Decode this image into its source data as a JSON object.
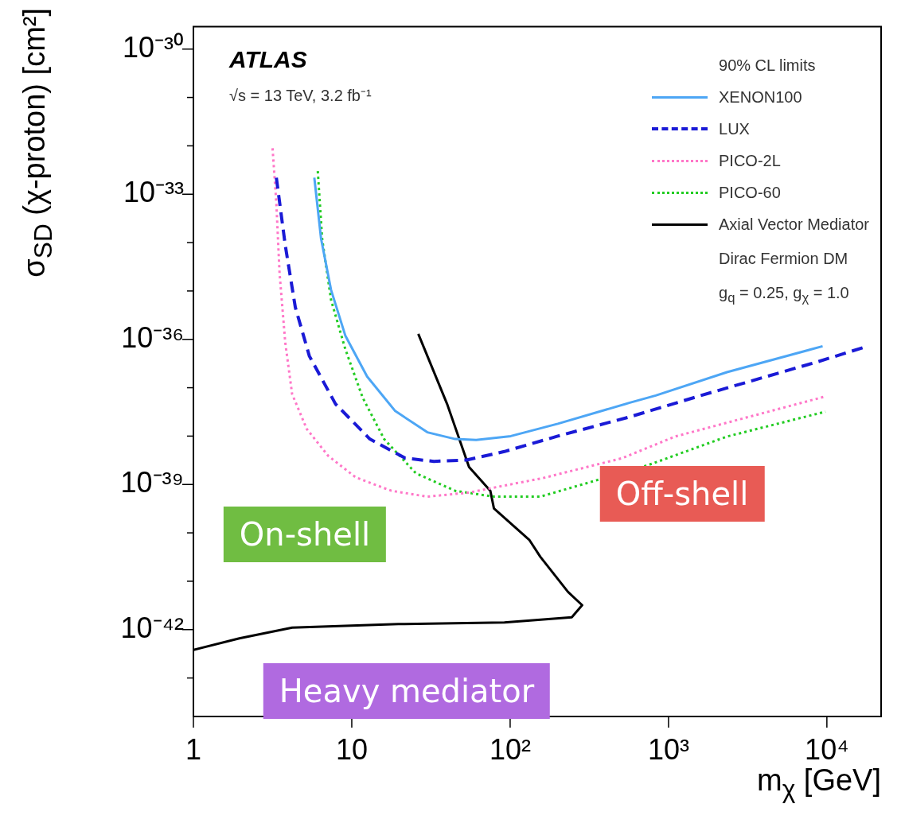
{
  "chart_data": {
    "type": "line",
    "xlabel": "m$_{χ}$ [GeV]",
    "ylabel": "σ$_{SD}$ (χ-proton) [cm²]",
    "legend_title": "90% CL limits",
    "legend": "top right",
    "log": "xy",
    "xlim": [
      1,
      22000
    ],
    "xticks": [
      {
        "value": 1,
        "label": "1"
      },
      {
        "value": 10,
        "label": "10"
      },
      {
        "value": 100,
        "label": "10²"
      },
      {
        "value": 1000,
        "label": "10³"
      },
      {
        "value": 10000,
        "label": "10⁴"
      }
    ],
    "ylim": [
      1.6e-44,
      2.9e-30
    ],
    "yticks": [
      {
        "value": 1e-43,
        "label": null
      },
      {
        "value": 1e-42,
        "label": "10⁻⁴²"
      },
      {
        "value": 1e-41,
        "label": null
      },
      {
        "value": 1e-40,
        "label": null
      },
      {
        "value": 1e-39,
        "label": "10⁻³⁹"
      },
      {
        "value": 1e-38,
        "label": null
      },
      {
        "value": 1e-37,
        "label": null
      },
      {
        "value": 1e-36,
        "label": "10⁻³⁶"
      },
      {
        "value": 1e-35,
        "label": null
      },
      {
        "value": 1e-34,
        "label": null
      },
      {
        "value": 1e-33,
        "label": "10⁻³³"
      },
      {
        "value": 1e-32,
        "label": null
      },
      {
        "value": 1e-31,
        "label": null
      },
      {
        "value": 1e-30,
        "label": "10⁻³⁰"
      }
    ],
    "series": [
      {
        "name": "XENON100",
        "color": "#4da6f5",
        "line_style": "solid",
        "x": [
          5.8,
          6.4,
          7.4,
          9.1,
          12.5,
          18.8,
          30,
          45,
          61,
          101,
          200,
          570,
          830,
          2340,
          9400
        ],
        "values": [
          2.2e-33,
          1.2e-34,
          1.05e-35,
          1.2e-36,
          1.7e-37,
          3.3e-38,
          1.2e-38,
          8.7e-39,
          8.3e-39,
          1e-38,
          1.8e-38,
          4.9e-38,
          6.9e-38,
          2.1e-37,
          7.2e-37
        ]
      },
      {
        "name": "LUX",
        "color": "#1a1ad6",
        "line_style": "dashed",
        "x": [
          3.34,
          3.8,
          4.4,
          5.4,
          7.9,
          13,
          21.8,
          33,
          53,
          92,
          200,
          570,
          1600,
          8900,
          18000
        ],
        "values": [
          2.2e-33,
          8.9e-35,
          4.6e-36,
          4.5e-37,
          4.6e-38,
          8.7e-39,
          3.5e-39,
          3e-39,
          3.2e-39,
          4.8e-39,
          1e-38,
          2.5e-38,
          6.9e-38,
          3.5e-37,
          7.2e-37
        ]
      },
      {
        "name": "PICO-2L",
        "color": "#ff77c8",
        "line_style": "dotted",
        "x": [
          3.16,
          3.34,
          3.5,
          3.8,
          4.2,
          5.2,
          7.1,
          10.6,
          17.8,
          30,
          55,
          92,
          160,
          510,
          1100,
          9800
        ],
        "values": [
          8.9e-33,
          6.5e-34,
          2.3e-35,
          8.7e-37,
          7.4e-38,
          1.4e-38,
          3.9e-39,
          1.4e-39,
          7.4e-40,
          5.6e-40,
          6.8e-40,
          9.5e-40,
          1.35e-39,
          3.5e-39,
          9.8e-39,
          6.6e-38
        ]
      },
      {
        "name": "PICO-60",
        "color": "#22cc22",
        "line_style": "dotted",
        "x": [
          6.1,
          6.5,
          7.4,
          9.1,
          11.7,
          16,
          25.4,
          45,
          79,
          155,
          285,
          740,
          2340,
          9800
        ],
        "values": [
          3e-33,
          1.2e-34,
          6.5e-36,
          6.3e-37,
          6.3e-38,
          8.7e-39,
          1.7e-39,
          7.4e-40,
          5.6e-40,
          5.6e-40,
          1e-39,
          2.5e-39,
          9.8e-39,
          3.2e-38
        ]
      },
      {
        "name": "Axial Vector Mediator",
        "color": "#000000",
        "line_style": "solid",
        "x": [
          26.3,
          40,
          55,
          75,
          79,
          132,
          155,
          232,
          285,
          245,
          92,
          19.7,
          4.2,
          1.95,
          1.0
        ],
        "values": [
          1.3e-36,
          4.6e-38,
          2.3e-39,
          7.4e-40,
          3.2e-40,
          7.2e-41,
          3.2e-41,
          6e-42,
          3.2e-42,
          1.8e-42,
          1.4e-42,
          1.3e-42,
          1.1e-42,
          6.6e-43,
          3.8e-43
        ]
      }
    ],
    "annotations": [
      "ATLAS",
      "√s = 13 TeV, 3.2 fb⁻¹",
      "Dirac Fermion DM",
      "g$_{q}$ = 0.25, g$_{χ}$ = 1.0",
      "On-shell",
      "Off-shell",
      "Heavy mediator"
    ]
  }
}
